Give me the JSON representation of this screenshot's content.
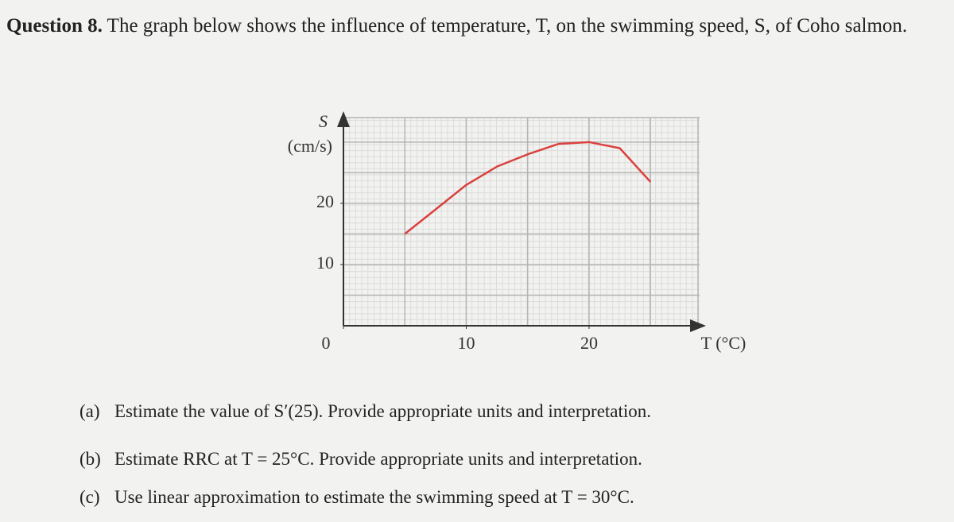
{
  "question": {
    "number": "Question 8.",
    "text": "The graph below shows the influence of temperature, T, on the swimming speed, S, of Coho salmon."
  },
  "chart_data": {
    "type": "line",
    "y_label": "S",
    "y_unit": "(cm/s)",
    "x_label": "T (°C)",
    "x": [
      5,
      7.5,
      10,
      12.5,
      15,
      17.5,
      20,
      22.5,
      25
    ],
    "series": [
      {
        "color": "#d9413e",
        "values": [
          15,
          19,
          23,
          26,
          28,
          29.7,
          30,
          29,
          23.5
        ]
      }
    ],
    "xlim": [
      0,
      29
    ],
    "ylim": [
      0,
      34
    ],
    "xticks": [
      0,
      10,
      20
    ],
    "yticks": [
      10,
      20
    ],
    "grid": true
  },
  "parts": [
    {
      "label": "(a)",
      "text": "Estimate the value of S′(25). Provide appropriate units and interpretation."
    },
    {
      "label": "(b)",
      "text": "Estimate RRC at T = 25°C. Provide appropriate units and interpretation."
    },
    {
      "label": "(c)",
      "text": "Use linear approximation to estimate the swimming speed at T = 30°C."
    }
  ]
}
